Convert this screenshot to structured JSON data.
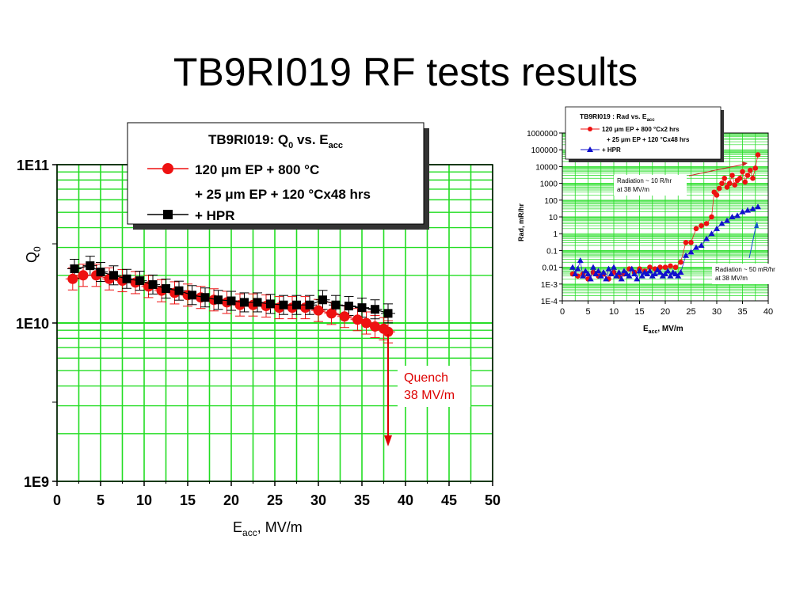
{
  "slide": {
    "title": "TB9RI019 RF tests results"
  },
  "chart_data": [
    {
      "type": "scatter",
      "title": "TB9RI019: Q",
      "title_sub": "0",
      "title_mid": " vs. E",
      "title_sub2": "acc",
      "xlabel_main": "E",
      "xlabel_sub": "acc",
      "xlabel_rest": ", MV/m",
      "ylabel_main": "Q",
      "ylabel_sub": "0",
      "xlim": [
        0,
        50
      ],
      "ylim": [
        1000000000,
        100000000000
      ],
      "y_scale": "log",
      "grid": true,
      "legend_position": "top",
      "x_ticks": [
        "0",
        "5",
        "10",
        "15",
        "20",
        "25",
        "30",
        "35",
        "40",
        "45",
        "50"
      ],
      "y_tick_labels": [
        {
          "value": 100000000000,
          "label": "1E11"
        },
        {
          "value": 10000000000,
          "label": "1E10"
        },
        {
          "value": 1000000000,
          "label": "1E9"
        }
      ],
      "legend": [
        {
          "label": "120 μm EP + 800 °C",
          "color": "#ee1111"
        },
        {
          "label": "+ 25 μm EP + 120 °Cx48 hrs",
          "color": "#ee1111"
        },
        {
          "label": "+ HPR",
          "color": "#000000"
        }
      ],
      "annotation": {
        "lines": [
          "Quench",
          "38 MV/m"
        ],
        "x": 38,
        "y_from": 8500000000,
        "y_to": 1700000000,
        "color": "#dd0000"
      },
      "series": [
        {
          "name": "120 μm EP + 800 °C + 25 μm EP + 120 °Cx48 hrs",
          "color": "#ee1111",
          "marker": "circle",
          "x": [
            1.8,
            3,
            4.5,
            6,
            7.5,
            9,
            10.5,
            12,
            13.5,
            15,
            16.5,
            18,
            19.5,
            21,
            22.5,
            24,
            25.5,
            27,
            28.5,
            30,
            31.5,
            33,
            34.5,
            35.5,
            36.5,
            37.5,
            38
          ],
          "y": [
            19000000000,
            20000000000,
            20000000000,
            19000000000,
            18500000000,
            18000000000,
            17000000000,
            16000000000,
            15500000000,
            15000000000,
            14500000000,
            14000000000,
            13500000000,
            13000000000,
            13000000000,
            12800000000,
            12500000000,
            12500000000,
            12500000000,
            12000000000,
            11500000000,
            11000000000,
            10500000000,
            10000000000,
            9500000000,
            9200000000,
            8800000000
          ]
        },
        {
          "name": "+ HPR",
          "color": "#000000",
          "marker": "square",
          "x": [
            2,
            3.8,
            5,
            6.5,
            8,
            9.5,
            11,
            12.5,
            14,
            15.5,
            17,
            18.5,
            20,
            21.5,
            23,
            24.5,
            26,
            27.5,
            29,
            30.5,
            32,
            33.5,
            35,
            36.5,
            38
          ],
          "y": [
            22000000000,
            23000000000,
            21000000000,
            20000000000,
            19000000000,
            18500000000,
            17500000000,
            16500000000,
            16000000000,
            15000000000,
            14500000000,
            14000000000,
            13800000000,
            13500000000,
            13500000000,
            13200000000,
            13000000000,
            13000000000,
            13000000000,
            14000000000,
            13000000000,
            12800000000,
            12500000000,
            12200000000,
            11500000000
          ]
        }
      ]
    },
    {
      "type": "scatter",
      "title": "TB9RI019 : Rad vs. E",
      "title_sub": "acc",
      "xlabel_main": "E",
      "xlabel_sub": "acc",
      "xlabel_rest": ", MV/m",
      "ylabel": "Rad, mR/hr",
      "xlim": [
        0,
        40
      ],
      "ylim": [
        0.0001,
        1000000
      ],
      "y_scale": "log",
      "grid": true,
      "legend_position": "top-left",
      "x_ticks": [
        "0",
        "5",
        "10",
        "15",
        "20",
        "25",
        "30",
        "35",
        "40"
      ],
      "y_tick_labels": [
        {
          "value": 1000000,
          "label": "1000000"
        },
        {
          "value": 100000,
          "label": "100000"
        },
        {
          "value": 10000,
          "label": "10000"
        },
        {
          "value": 1000,
          "label": "1000"
        },
        {
          "value": 100,
          "label": "100"
        },
        {
          "value": 10,
          "label": "10"
        },
        {
          "value": 1,
          "label": "1"
        },
        {
          "value": 0.1,
          "label": "0.1"
        },
        {
          "value": 0.01,
          "label": "0.01"
        },
        {
          "value": 0.001,
          "label": "1E-3"
        },
        {
          "value": 0.0001,
          "label": "1E-4"
        }
      ],
      "legend": [
        {
          "label": "120 μm EP + 800 °Cx2 hrs",
          "color": "#ee1111"
        },
        {
          "label": "+ 25 μm EP + 120 °Cx48 hrs",
          "color": "#ee1111"
        },
        {
          "label": "+ HPR",
          "color": "#1111cc"
        }
      ],
      "annotations": [
        {
          "lines": [
            "Radiation ~ 10 R/hr",
            "at 38 MV/m"
          ],
          "color": "#cc2222"
        },
        {
          "lines": [
            "Radiation ~ 50 mR/hr",
            "at 38 MV/m"
          ],
          "color": "#1155cc"
        }
      ],
      "series": [
        {
          "name": "120 μm EP + 800 °Cx2 hrs + 25 μm EP + 120 °Cx48 hrs",
          "color": "#ee1111",
          "marker": "circle",
          "x": [
            2,
            3,
            4,
            5,
            6,
            7,
            8,
            9,
            10,
            11,
            12,
            13,
            14,
            15,
            16,
            17,
            18,
            19,
            20,
            21,
            22,
            23,
            24,
            25,
            26,
            27,
            28,
            29,
            29.5,
            30,
            30.5,
            31,
            31.5,
            32,
            32.5,
            33,
            33.5,
            34,
            34.5,
            35,
            35.5,
            36,
            36.5,
            37,
            37.5,
            38
          ],
          "y": [
            0.004,
            0.003,
            0.004,
            0.002,
            0.005,
            0.003,
            0.004,
            0.002,
            0.005,
            0.003,
            0.004,
            0.008,
            0.005,
            0.008,
            0.006,
            0.01,
            0.008,
            0.01,
            0.01,
            0.012,
            0.01,
            0.02,
            0.3,
            0.3,
            2,
            3,
            4,
            10,
            300,
            200,
            500,
            1000,
            2000,
            600,
            1000,
            3000,
            800,
            1500,
            2000,
            5000,
            1200,
            3000,
            6000,
            2000,
            8000,
            50000
          ]
        },
        {
          "name": "+ HPR",
          "color": "#1111cc",
          "marker": "triangle",
          "x": [
            2,
            2.5,
            3,
            3.5,
            4,
            4.5,
            5,
            5.5,
            6,
            6.5,
            7,
            7.5,
            8,
            8.5,
            9,
            9.5,
            10,
            10.5,
            11,
            11.5,
            12,
            12.5,
            13,
            13.5,
            14,
            14.5,
            15,
            15.5,
            16,
            16.5,
            17,
            17.5,
            18,
            18.5,
            19,
            19.5,
            20,
            20.5,
            21,
            21.5,
            22,
            22.5,
            23,
            24,
            25,
            26,
            27,
            28,
            29,
            30,
            31,
            32,
            33,
            34,
            35,
            36,
            37,
            38
          ],
          "y": [
            0.01,
            0.004,
            0.008,
            0.025,
            0.003,
            0.006,
            0.004,
            0.002,
            0.01,
            0.004,
            0.006,
            0.003,
            0.005,
            0.002,
            0.008,
            0.004,
            0.01,
            0.003,
            0.005,
            0.002,
            0.006,
            0.004,
            0.003,
            0.008,
            0.004,
            0.002,
            0.006,
            0.003,
            0.005,
            0.004,
            0.006,
            0.003,
            0.004,
            0.007,
            0.005,
            0.003,
            0.004,
            0.006,
            0.003,
            0.005,
            0.004,
            0.003,
            0.005,
            0.05,
            0.08,
            0.15,
            0.2,
            0.5,
            1,
            2,
            4,
            6,
            10,
            12,
            20,
            25,
            30,
            40
          ]
        }
      ]
    }
  ]
}
